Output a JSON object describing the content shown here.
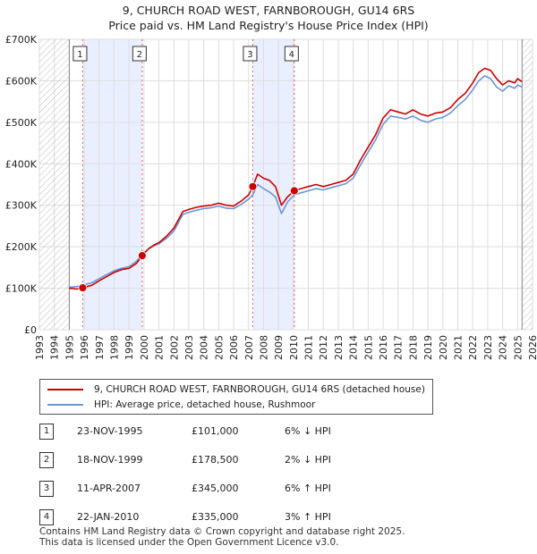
{
  "title": "9, CHURCH ROAD WEST, FARNBOROUGH, GU14 6RS",
  "subtitle": "Price paid vs. HM Land Registry's House Price Index (HPI)",
  "colors": {
    "property": "#cc0000",
    "hpi": "#6a96d8",
    "shade": "#e9efff",
    "grid": "#dddddd",
    "marker_line": "#e06060"
  },
  "chart_data": {
    "type": "line",
    "title": "9, CHURCH ROAD WEST, FARNBOROUGH, GU14 6RS",
    "subtitle": "Price paid vs. HM Land Registry's House Price Index (HPI)",
    "xlabel": "",
    "ylabel": "",
    "xlim": [
      1993,
      2026
    ],
    "ylim": [
      0,
      700000
    ],
    "data_start_year": 1995,
    "data_end_year": 2025.3,
    "y_ticks": [
      0,
      100000,
      200000,
      300000,
      400000,
      500000,
      600000,
      700000
    ],
    "y_tick_labels": [
      "£0",
      "£100K",
      "£200K",
      "£300K",
      "£400K",
      "£500K",
      "£600K",
      "£700K"
    ],
    "x_ticks": [
      1993,
      1994,
      1995,
      1996,
      1997,
      1998,
      1999,
      2000,
      2001,
      2002,
      2003,
      2004,
      2005,
      2006,
      2007,
      2008,
      2009,
      2010,
      2011,
      2012,
      2013,
      2014,
      2015,
      2016,
      2017,
      2018,
      2019,
      2020,
      2021,
      2022,
      2023,
      2024,
      2025,
      2026
    ],
    "grid": true,
    "shaded_periods": [
      [
        1995.9,
        1999.88
      ],
      [
        2007.28,
        2010.06
      ]
    ],
    "series": [
      {
        "name": "9, CHURCH ROAD WEST, FARNBOROUGH, GU14 6RS (detached house)",
        "color": "#cc0000",
        "x": [
          1995.0,
          1995.5,
          1995.9,
          1996.5,
          1997.0,
          1997.5,
          1998.0,
          1998.5,
          1999.0,
          1999.5,
          1999.88,
          2000.3,
          2000.7,
          2001.0,
          2001.5,
          2002.0,
          2002.3,
          2002.6,
          2003.0,
          2003.5,
          2004.0,
          2004.5,
          2005.0,
          2005.5,
          2006.0,
          2006.5,
          2007.0,
          2007.28,
          2007.6,
          2008.0,
          2008.4,
          2008.8,
          2009.2,
          2009.6,
          2010.06,
          2010.5,
          2011.0,
          2011.5,
          2012.0,
          2012.5,
          2013.0,
          2013.5,
          2014.0,
          2014.5,
          2015.0,
          2015.5,
          2016.0,
          2016.5,
          2017.0,
          2017.5,
          2018.0,
          2018.5,
          2019.0,
          2019.5,
          2020.0,
          2020.5,
          2021.0,
          2021.5,
          2022.0,
          2022.4,
          2022.8,
          2023.2,
          2023.6,
          2024.0,
          2024.4,
          2024.8,
          2025.0,
          2025.3
        ],
        "values": [
          100000,
          98000,
          101000,
          107000,
          118000,
          128000,
          138000,
          145000,
          148000,
          160000,
          178500,
          195000,
          205000,
          210000,
          225000,
          245000,
          265000,
          285000,
          290000,
          295000,
          298000,
          300000,
          305000,
          300000,
          298000,
          310000,
          325000,
          345000,
          375000,
          365000,
          360000,
          345000,
          300000,
          320000,
          335000,
          340000,
          345000,
          350000,
          345000,
          350000,
          355000,
          360000,
          375000,
          410000,
          440000,
          470000,
          510000,
          530000,
          525000,
          520000,
          530000,
          520000,
          515000,
          522000,
          525000,
          535000,
          555000,
          570000,
          595000,
          620000,
          630000,
          625000,
          605000,
          590000,
          600000,
          595000,
          605000,
          598000
        ]
      },
      {
        "name": "HPI: Average price, detached house, Rushmoor",
        "color": "#6a96d8",
        "x": [
          1995.0,
          1995.5,
          1995.9,
          1996.5,
          1997.0,
          1997.5,
          1998.0,
          1998.5,
          1999.0,
          1999.5,
          1999.88,
          2000.3,
          2000.7,
          2001.0,
          2001.5,
          2002.0,
          2002.3,
          2002.6,
          2003.0,
          2003.5,
          2004.0,
          2004.5,
          2005.0,
          2005.5,
          2006.0,
          2006.5,
          2007.0,
          2007.28,
          2007.6,
          2008.0,
          2008.4,
          2008.8,
          2009.2,
          2009.6,
          2010.06,
          2010.5,
          2011.0,
          2011.5,
          2012.0,
          2012.5,
          2013.0,
          2013.5,
          2014.0,
          2014.5,
          2015.0,
          2015.5,
          2016.0,
          2016.5,
          2017.0,
          2017.5,
          2018.0,
          2018.5,
          2019.0,
          2019.5,
          2020.0,
          2020.5,
          2021.0,
          2021.5,
          2022.0,
          2022.4,
          2022.8,
          2023.2,
          2023.6,
          2024.0,
          2024.4,
          2024.8,
          2025.0,
          2025.3
        ],
        "values": [
          102000,
          104000,
          107000,
          113000,
          123000,
          133000,
          142000,
          148000,
          152000,
          165000,
          182000,
          195000,
          203000,
          207000,
          220000,
          238000,
          258000,
          278000,
          283000,
          288000,
          292000,
          294000,
          298000,
          293000,
          292000,
          302000,
          315000,
          325000,
          350000,
          340000,
          332000,
          320000,
          280000,
          308000,
          325000,
          330000,
          335000,
          340000,
          337000,
          342000,
          347000,
          352000,
          365000,
          398000,
          428000,
          458000,
          495000,
          515000,
          512000,
          508000,
          515000,
          505000,
          500000,
          508000,
          512000,
          522000,
          540000,
          555000,
          578000,
          600000,
          612000,
          605000,
          585000,
          575000,
          588000,
          582000,
          590000,
          585000
        ]
      }
    ],
    "sales": [
      {
        "label": "1",
        "x": 1995.9,
        "value": 101000
      },
      {
        "label": "2",
        "x": 1999.88,
        "value": 178500
      },
      {
        "label": "3",
        "x": 2007.28,
        "value": 345000
      },
      {
        "label": "4",
        "x": 2010.06,
        "value": 335000
      }
    ]
  },
  "legend": {
    "property_label": "9, CHURCH ROAD WEST, FARNBOROUGH, GU14 6RS (detached house)",
    "hpi_label": "HPI: Average price, detached house, Rushmoor"
  },
  "sales_table": [
    {
      "num": "1",
      "date": "23-NOV-1995",
      "price": "£101,000",
      "hpi": "6% ↓ HPI"
    },
    {
      "num": "2",
      "date": "18-NOV-1999",
      "price": "£178,500",
      "hpi": "2% ↓ HPI"
    },
    {
      "num": "3",
      "date": "11-APR-2007",
      "price": "£345,000",
      "hpi": "6% ↑ HPI"
    },
    {
      "num": "4",
      "date": "22-JAN-2010",
      "price": "£335,000",
      "hpi": "3% ↑ HPI"
    }
  ],
  "footer": {
    "line1": "Contains HM Land Registry data © Crown copyright and database right 2025.",
    "line2": "This data is licensed under the Open Government Licence v3.0."
  }
}
